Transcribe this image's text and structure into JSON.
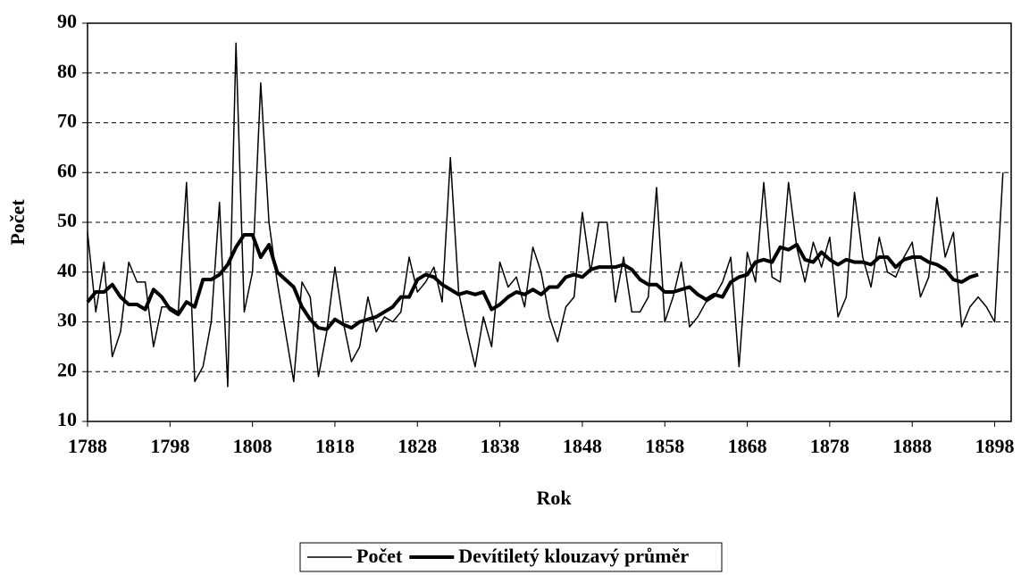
{
  "chart_data": {
    "type": "line",
    "x_label": "Rok",
    "y_label": "Počet",
    "x": [
      1788,
      1789,
      1790,
      1791,
      1792,
      1793,
      1794,
      1795,
      1796,
      1797,
      1798,
      1799,
      1800,
      1801,
      1802,
      1803,
      1804,
      1805,
      1806,
      1807,
      1808,
      1809,
      1810,
      1811,
      1812,
      1813,
      1814,
      1815,
      1816,
      1817,
      1818,
      1819,
      1820,
      1821,
      1822,
      1823,
      1824,
      1825,
      1826,
      1827,
      1828,
      1829,
      1830,
      1831,
      1832,
      1833,
      1834,
      1835,
      1836,
      1837,
      1838,
      1839,
      1840,
      1841,
      1842,
      1843,
      1844,
      1845,
      1846,
      1847,
      1848,
      1849,
      1850,
      1851,
      1852,
      1853,
      1854,
      1855,
      1856,
      1857,
      1858,
      1859,
      1860,
      1861,
      1862,
      1863,
      1864,
      1865,
      1866,
      1867,
      1868,
      1869,
      1870,
      1871,
      1872,
      1873,
      1874,
      1875,
      1876,
      1877,
      1878,
      1879,
      1880,
      1881,
      1882,
      1883,
      1884,
      1885,
      1886,
      1887,
      1888,
      1889,
      1890,
      1891,
      1892,
      1893,
      1894,
      1895,
      1896,
      1897,
      1898,
      1899
    ],
    "series": [
      {
        "name": "Počet",
        "color": "#000000",
        "width": 1.5,
        "values": [
          48,
          32,
          42,
          23,
          28,
          42,
          38,
          38,
          25,
          33,
          33,
          32,
          58,
          18,
          21,
          30,
          54,
          17,
          86,
          32,
          40,
          78,
          50,
          38,
          28,
          18,
          38,
          35,
          19,
          28,
          41,
          30,
          22,
          25,
          35,
          28,
          31,
          30,
          32,
          43,
          36,
          38,
          41,
          34,
          63,
          36,
          28,
          21,
          31,
          25,
          42,
          37,
          39,
          33,
          45,
          40,
          31,
          26,
          33,
          35,
          52,
          40,
          50,
          50,
          34,
          43,
          32,
          32,
          35,
          57,
          30,
          35,
          42,
          29,
          31,
          34,
          35,
          38,
          43,
          21,
          44,
          38,
          58,
          39,
          38,
          58,
          45,
          38,
          46,
          41,
          47,
          31,
          35,
          56,
          43,
          37,
          47,
          40,
          39,
          43,
          46,
          35,
          39,
          55,
          43,
          48,
          29,
          33,
          35,
          33,
          30,
          60
        ]
      },
      {
        "name": "Devítiletý klouzavý průměr",
        "color": "#000000",
        "width": 4,
        "values": [
          34,
          36,
          36,
          37.5,
          35,
          33.5,
          33.5,
          32.5,
          36.5,
          35,
          32.5,
          31.5,
          34,
          33,
          38.5,
          38.5,
          39.5,
          41.5,
          45,
          47.5,
          47.5,
          43,
          45.5,
          40,
          38.5,
          37,
          33,
          30.5,
          28.8,
          28.5,
          30.5,
          29.5,
          28.8,
          30,
          30.5,
          31,
          32,
          33,
          35,
          35,
          38.5,
          39.5,
          39,
          37.5,
          36.5,
          35.5,
          36,
          35.5,
          36,
          32.5,
          33.5,
          35,
          36,
          35.5,
          36.5,
          35.5,
          37,
          37,
          39,
          39.5,
          39,
          40.5,
          41,
          41,
          41,
          41.5,
          40.5,
          38.5,
          37.5,
          37.5,
          36,
          36,
          36.5,
          37,
          35.5,
          34.5,
          35.5,
          35,
          38,
          39,
          39.5,
          42,
          42.5,
          42,
          45,
          44.5,
          45.5,
          42.5,
          42,
          44,
          42.5,
          41.5,
          42.5,
          42,
          42,
          41.5,
          43,
          43,
          41,
          42.5,
          43,
          43,
          42,
          41.5,
          40.5,
          38.5,
          38,
          39,
          39.5,
          null,
          null,
          null
        ]
      }
    ],
    "xlim": [
      1788,
      1900
    ],
    "xticks": [
      1788,
      1798,
      1808,
      1818,
      1828,
      1838,
      1848,
      1858,
      1868,
      1878,
      1888,
      1898
    ],
    "ylim": [
      10,
      90
    ],
    "yticks": [
      10,
      20,
      30,
      40,
      50,
      60,
      70,
      80,
      90
    ],
    "grid": true,
    "legend": "bottom"
  }
}
